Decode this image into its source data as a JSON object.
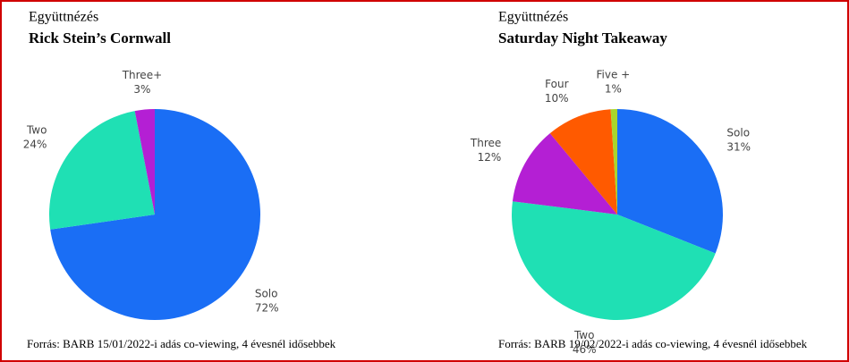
{
  "chart_data": [
    {
      "type": "pie",
      "title": "Együttnézés",
      "subtitle": "Rick Stein’s Cornwall",
      "categories": [
        "Solo",
        "Two",
        "Three+"
      ],
      "values": [
        72,
        24,
        3
      ],
      "value_labels": [
        "72%",
        "24%",
        "3%"
      ],
      "colors": [
        "#1a6ef5",
        "#1fe0b4",
        "#b41fd4"
      ],
      "note": "Forrás: BARB 15/01/2022-i adás co-viewing, 4 évesnél idősebbek"
    },
    {
      "type": "pie",
      "title": "Együttnézés",
      "subtitle": "Saturday  Night Takeaway",
      "categories": [
        "Solo",
        "Two",
        "Three",
        "Four",
        "Five +"
      ],
      "values": [
        31,
        46,
        12,
        10,
        1
      ],
      "value_labels": [
        "31%",
        "46%",
        "12%",
        "10%",
        "1%"
      ],
      "colors": [
        "#1a6ef5",
        "#1fe0b4",
        "#b41fd4",
        "#ff5a00",
        "#a8d62c"
      ],
      "note": "Forrás: BARB 19/02/2022-i adás co-viewing, 4 évesnél idősebbek"
    }
  ]
}
